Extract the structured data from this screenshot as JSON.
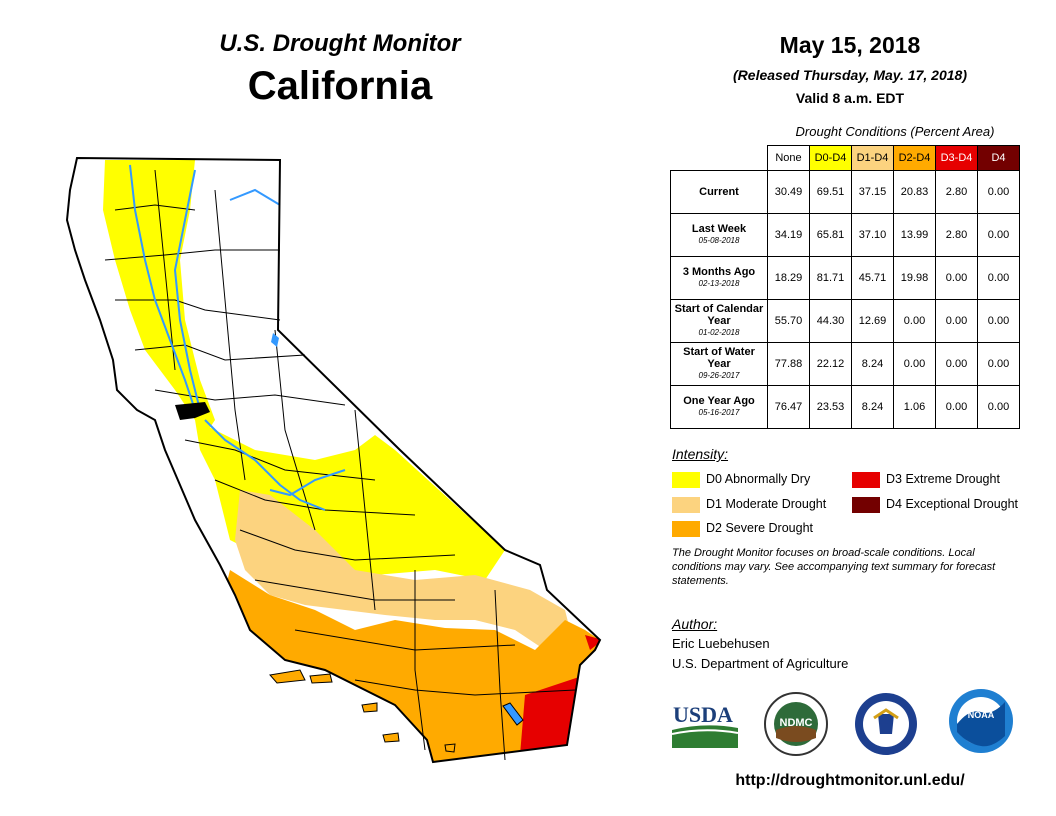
{
  "header": {
    "brand": "U.S. Drought Monitor",
    "region": "California",
    "date": "May 15, 2018",
    "released": "(Released Thursday, May. 17, 2018)",
    "valid": "Valid 8 a.m. EDT"
  },
  "table": {
    "caption": "Drought Conditions (Percent Area)",
    "columns": [
      {
        "label": "None",
        "color": "#ffffff",
        "text_color": "#000000"
      },
      {
        "label": "D0-D4",
        "color": "#ffff00",
        "text_color": "#000000"
      },
      {
        "label": "D1-D4",
        "color": "#fcd37f",
        "text_color": "#000000"
      },
      {
        "label": "D2-D4",
        "color": "#ffaa00",
        "text_color": "#000000"
      },
      {
        "label": "D3-D4",
        "color": "#e60000",
        "text_color": "#ffffff"
      },
      {
        "label": "D4",
        "color": "#730000",
        "text_color": "#ffffff"
      }
    ],
    "rows": [
      {
        "label": "Current",
        "sub": "",
        "values": [
          "30.49",
          "69.51",
          "37.15",
          "20.83",
          "2.80",
          "0.00"
        ]
      },
      {
        "label": "Last Week",
        "sub": "05-08-2018",
        "values": [
          "34.19",
          "65.81",
          "37.10",
          "13.99",
          "2.80",
          "0.00"
        ]
      },
      {
        "label": "3 Months Ago",
        "sub": "02-13-2018",
        "values": [
          "18.29",
          "81.71",
          "45.71",
          "19.98",
          "0.00",
          "0.00"
        ]
      },
      {
        "label": "Start of Calendar Year",
        "sub": "01-02-2018",
        "values": [
          "55.70",
          "44.30",
          "12.69",
          "0.00",
          "0.00",
          "0.00"
        ]
      },
      {
        "label": "Start of Water Year",
        "sub": "09-26-2017",
        "values": [
          "77.88",
          "22.12",
          "8.24",
          "0.00",
          "0.00",
          "0.00"
        ]
      },
      {
        "label": "One Year Ago",
        "sub": "05-16-2017",
        "values": [
          "76.47",
          "23.53",
          "8.24",
          "1.06",
          "0.00",
          "0.00"
        ]
      }
    ]
  },
  "legend": {
    "heading": "Intensity:",
    "items": [
      {
        "label": "D0 Abnormally Dry",
        "color": "#ffff00"
      },
      {
        "label": "D1 Moderate Drought",
        "color": "#fcd37f"
      },
      {
        "label": "D2 Severe Drought",
        "color": "#ffaa00"
      },
      {
        "label": "D3 Extreme Drought",
        "color": "#e60000"
      },
      {
        "label": "D4 Exceptional Drought",
        "color": "#730000"
      }
    ]
  },
  "note": "The Drought Monitor focuses on broad-scale conditions. Local conditions may vary. See accompanying text summary for forecast statements.",
  "author": {
    "heading": "Author:",
    "name": "Eric Luebehusen",
    "org": "U.S. Department of Agriculture"
  },
  "logos": {
    "usda": "USDA",
    "ndmc": "NDMC",
    "noaa": "NOAA"
  },
  "url": "http://droughtmonitor.unl.edu/",
  "map": {
    "state": "California",
    "water_color": "#3399ff"
  }
}
